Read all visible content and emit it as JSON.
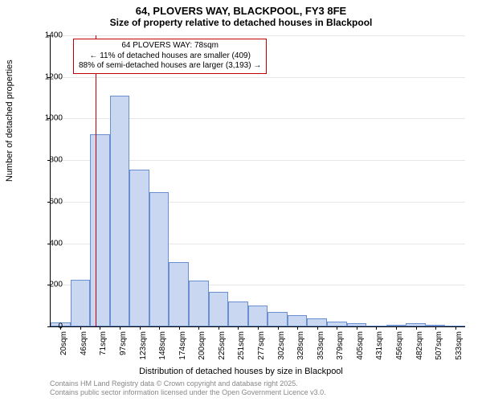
{
  "title_main": "64, PLOVERS WAY, BLACKPOOL, FY3 8FE",
  "title_sub": "Size of property relative to detached houses in Blackpool",
  "y_axis_label": "Number of detached properties",
  "x_axis_label": "Distribution of detached houses by size in Blackpool",
  "chart": {
    "type": "histogram",
    "ylim": [
      0,
      1400
    ],
    "ytick_step": 200,
    "bar_fill": "#cad7f0",
    "bar_border": "#6a8fd0",
    "grid_color": "#e6e6e6",
    "background": "#ffffff",
    "marker_color": "#c00000",
    "marker_value": 78,
    "x_start": 20,
    "x_step": 25.65,
    "categories": [
      "20sqm",
      "46sqm",
      "71sqm",
      "97sqm",
      "123sqm",
      "148sqm",
      "174sqm",
      "200sqm",
      "225sqm",
      "251sqm",
      "277sqm",
      "302sqm",
      "328sqm",
      "353sqm",
      "379sqm",
      "405sqm",
      "431sqm",
      "456sqm",
      "482sqm",
      "507sqm",
      "533sqm"
    ],
    "values": [
      18,
      225,
      925,
      1110,
      755,
      645,
      310,
      220,
      165,
      120,
      100,
      70,
      55,
      40,
      25,
      15,
      0,
      5,
      15,
      5,
      0
    ]
  },
  "info_box": {
    "line1": "64 PLOVERS WAY: 78sqm",
    "line2": "← 11% of detached houses are smaller (409)",
    "line3": "88% of semi-detached houses are larger (3,193) →"
  },
  "footer": {
    "line1": "Contains HM Land Registry data © Crown copyright and database right 2025.",
    "line2": "Contains public sector information licensed under the Open Government Licence v3.0."
  }
}
